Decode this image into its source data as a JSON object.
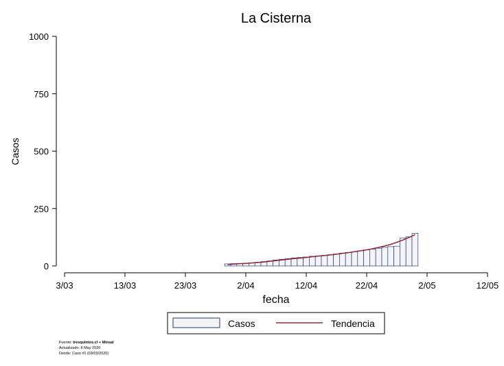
{
  "chart_data": {
    "type": "bar",
    "title": "La Cisterna",
    "xlabel": "fecha",
    "ylabel": "Casos",
    "ylim": [
      0,
      1000
    ],
    "y_ticks": [
      "0",
      "250",
      "500",
      "750",
      "1000"
    ],
    "x_ticks": [
      "3/03",
      "13/03",
      "23/03",
      "2/04",
      "12/04",
      "22/04",
      "2/05",
      "12/05"
    ],
    "x_range_days": [
      0,
      70
    ],
    "x_start_day": 27,
    "bar_color": "#f2f4f8",
    "bar_edge": "#2a3a6a",
    "trend_color": "#8b2b3a",
    "casos": [
      9,
      10,
      11,
      12,
      13,
      16,
      19,
      22,
      26,
      29,
      32,
      35,
      37,
      39,
      42,
      44,
      46,
      49,
      52,
      56,
      59,
      62,
      66,
      70,
      73,
      77,
      81,
      84,
      86,
      122,
      127,
      142
    ],
    "tendencia": [
      6,
      8,
      10,
      11,
      13,
      15,
      17,
      20,
      23,
      26,
      29,
      32,
      34,
      37,
      40,
      43,
      45,
      48,
      51,
      55,
      58,
      62,
      66,
      70,
      75,
      81,
      87,
      94,
      103,
      113,
      124,
      136
    ],
    "legend": {
      "items": [
        {
          "name": "Casos",
          "kind": "bar"
        },
        {
          "name": "Tendencia",
          "kind": "line"
        }
      ],
      "placement": "bottom"
    }
  },
  "source": {
    "line1_prefix": "Fuente: ",
    "line1_bold": "tresquintos.cl + Minsal",
    "line2": "Actualizado: 8 May 2020",
    "line3": "Desde: Caso #1  (03/03/2020)"
  }
}
